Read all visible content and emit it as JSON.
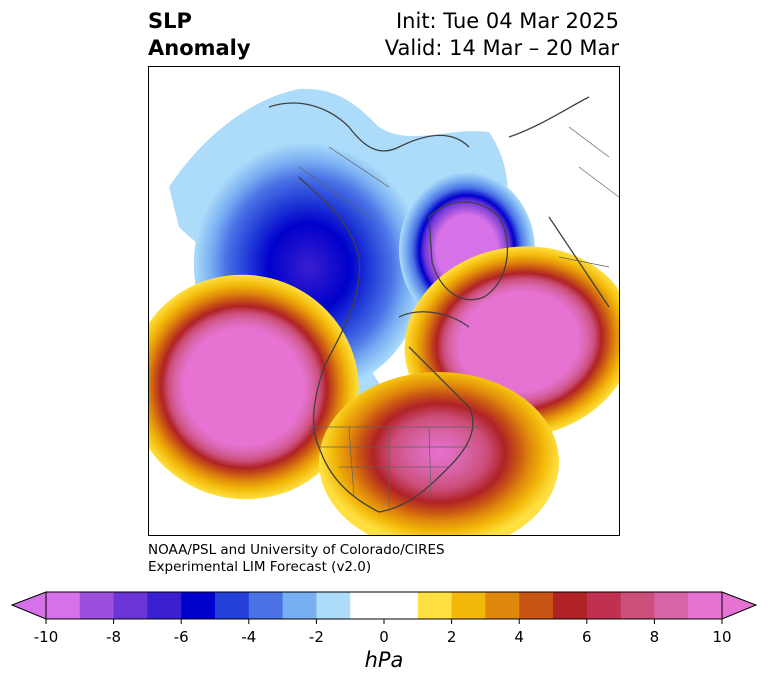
{
  "title": {
    "left_line1": "SLP",
    "left_line2": "Anomaly",
    "right_line1": "Init: Tue 04 Mar 2025",
    "right_line2": "Valid: 14 Mar – 20 Mar"
  },
  "credit": {
    "line1": "NOAA/PSL and University of Colorado/CIRES",
    "line2": "Experimental LIM Forecast (v2.0)"
  },
  "colorbar": {
    "unit": "hPa",
    "ticks": [
      "-10",
      "-8",
      "-6",
      "-4",
      "-2",
      "0",
      "2",
      "4",
      "6",
      "8",
      "10"
    ],
    "colors": [
      "#d671e8",
      "#9b4fdc",
      "#6a34d6",
      "#3a1fd0",
      "#0000cc",
      "#2440d8",
      "#4a72e6",
      "#78aef2",
      "#acdcfa",
      "#ffffff",
      "#ffffff",
      "#ffe040",
      "#f2b90a",
      "#e0880c",
      "#c85414",
      "#b02226",
      "#c03050",
      "#cc4e7a",
      "#d864a8",
      "#e672d2"
    ]
  },
  "map": {
    "anomalies": [
      {
        "name": "Northwest Canada / Alaska",
        "sign": "negative",
        "peak_hPa": -6
      },
      {
        "name": "Greenland / Baffin Bay",
        "sign": "negative",
        "peak_hPa": -10
      },
      {
        "name": "Northeast Pacific",
        "sign": "positive",
        "peak_hPa": 10
      },
      {
        "name": "North Atlantic",
        "sign": "positive",
        "peak_hPa": 10
      },
      {
        "name": "Eastern United States",
        "sign": "positive",
        "peak_hPa": 9
      }
    ]
  }
}
